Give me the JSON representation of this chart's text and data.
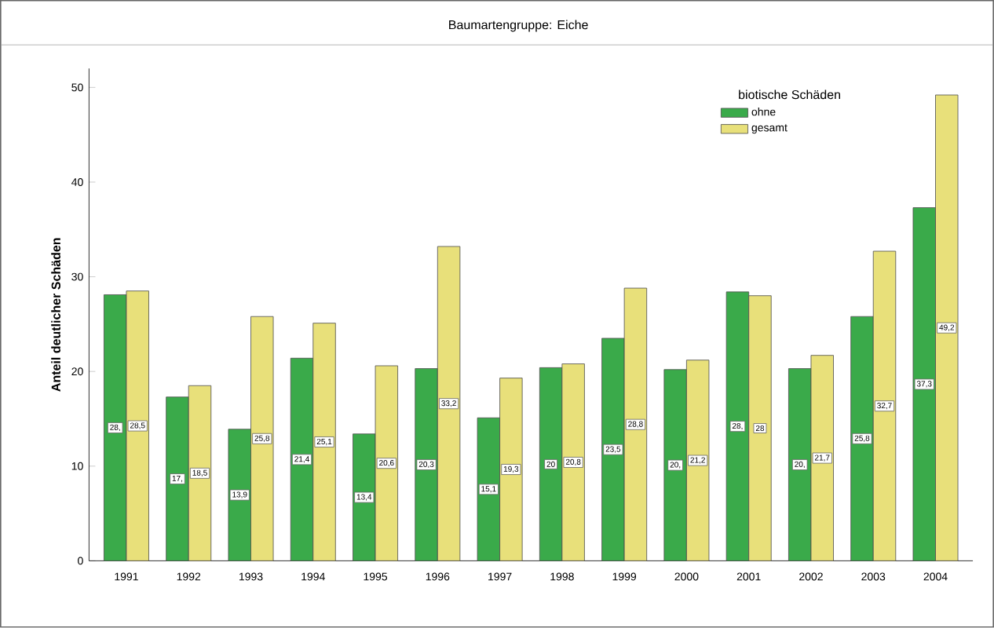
{
  "chart_data": {
    "type": "bar",
    "title": "Baumartengruppe: Eiche",
    "ylabel": "Anteil deutlicher Schäden",
    "legend_title": "biotische Schäden",
    "legend": "top right",
    "grid": false,
    "categories": [
      "1991",
      "1992",
      "1993",
      "1994",
      "1995",
      "1996",
      "1997",
      "1998",
      "1999",
      "2000",
      "2001",
      "2002",
      "2003",
      "2004"
    ],
    "ylim": [
      0,
      52
    ],
    "yticks": [
      0,
      10,
      20,
      30,
      40,
      50
    ],
    "series": [
      {
        "name": "ohne",
        "color": "#3aaa4a",
        "values": [
          28.1,
          17.3,
          13.9,
          21.4,
          13.4,
          20.3,
          15.1,
          20.4,
          23.5,
          20.2,
          28.4,
          20.3,
          25.8,
          37.3
        ],
        "value_labels": [
          "28,",
          "17,",
          "13,9",
          "21,4",
          "13,4",
          "20,3",
          "15,1",
          "20",
          "23,5",
          "20,",
          "28,",
          "20,",
          "25,8",
          "37,3"
        ]
      },
      {
        "name": "gesamt",
        "color": "#e8e07a",
        "values": [
          28.5,
          18.5,
          25.8,
          25.1,
          20.6,
          33.2,
          19.3,
          20.8,
          28.8,
          21.2,
          28,
          21.7,
          32.7,
          49.2
        ],
        "value_labels": [
          "28,5",
          "18,5",
          "25,8",
          "25,1",
          "20,6",
          "33,2",
          "19,3",
          "20,8",
          "28,8",
          "21,2",
          "28",
          "21,7",
          "32,7",
          "49,2"
        ]
      }
    ]
  }
}
